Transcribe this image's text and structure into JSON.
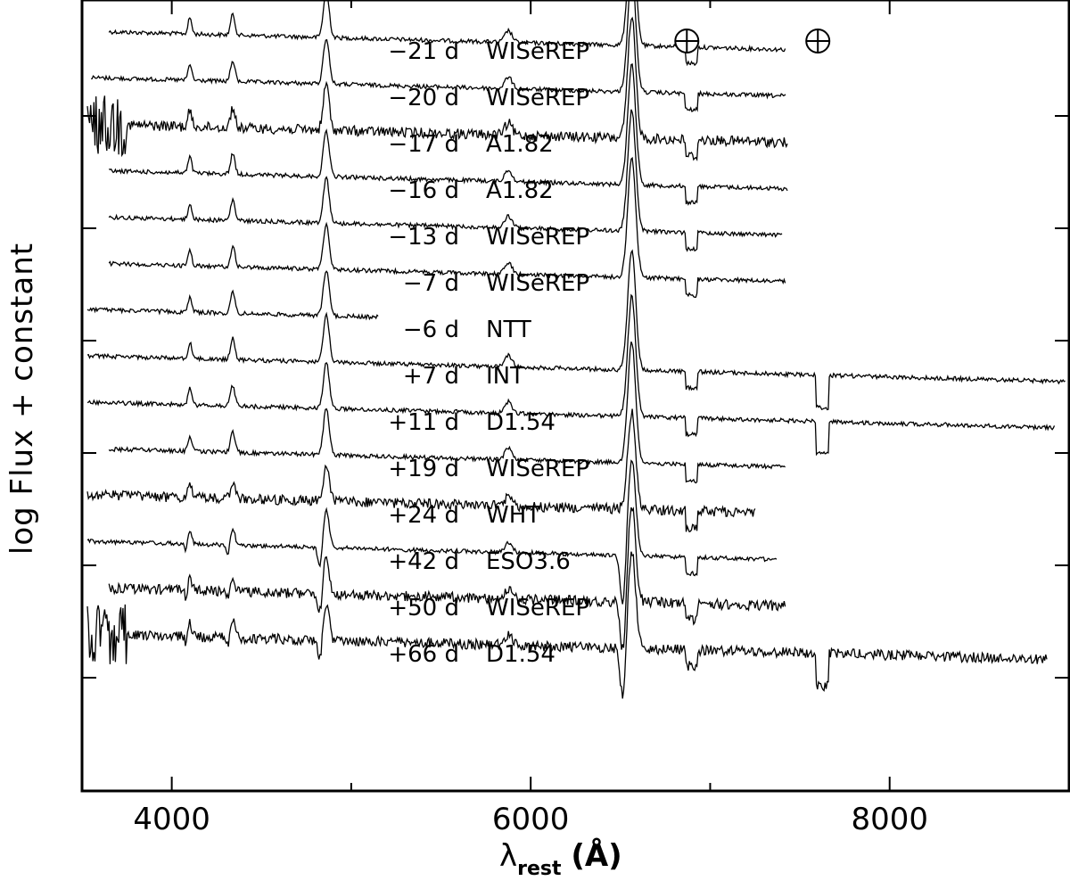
{
  "chart_data": {
    "type": "line",
    "title": "",
    "xlabel_symbol": "λ",
    "xlabel_sub": "rest",
    "xlabel_unit": "(Å)",
    "ylabel": "log Flux + constant",
    "xlim": [
      3500,
      9000
    ],
    "x_ticks": [
      4000,
      6000,
      8000
    ],
    "x_tick_labels": [
      "4000",
      "6000",
      "8000"
    ],
    "telluric_symbols": [
      {
        "x": 6870,
        "glyph": "⊕"
      },
      {
        "x": 7600,
        "glyph": "⊕"
      }
    ],
    "grid": false,
    "legend": "none",
    "line_color": "#000000",
    "features": [
      {
        "x": 4101,
        "width": 10,
        "strength": 0.35
      },
      {
        "x": 4340,
        "width": 12,
        "strength": 0.45
      },
      {
        "x": 4861,
        "width": 16,
        "strength": 1.0
      },
      {
        "x": 5876,
        "width": 20,
        "strength": 0.25
      },
      {
        "x": 6563,
        "width": 22,
        "strength": 2.6
      }
    ],
    "series": [
      {
        "epoch": "−21 d",
        "source": "WISeREP",
        "x_range": [
          3650,
          7420
        ],
        "offset": 13.0
      },
      {
        "epoch": "−20 d",
        "source": "WISeREP",
        "x_range": [
          3550,
          7420
        ],
        "offset": 12.0
      },
      {
        "epoch": "−17 d",
        "source": "A1.82",
        "x_range": [
          3530,
          7430
        ],
        "offset": 11.0
      },
      {
        "epoch": "−16 d",
        "source": "A1.82",
        "x_range": [
          3650,
          7430
        ],
        "offset": 10.0
      },
      {
        "epoch": "−13 d",
        "source": "WISeREP",
        "x_range": [
          3650,
          7400
        ],
        "offset": 9.0
      },
      {
        "epoch": "−7 d",
        "source": "WISeREP",
        "x_range": [
          3650,
          7420
        ],
        "offset": 8.0
      },
      {
        "epoch": "−6 d",
        "source": "NTT",
        "x_range": [
          3530,
          5150
        ],
        "offset": 7.0
      },
      {
        "epoch": "+7 d",
        "source": "INT",
        "x_range": [
          3530,
          8980
        ],
        "offset": 6.0
      },
      {
        "epoch": "+11 d",
        "source": "D1.54",
        "x_range": [
          3530,
          8920
        ],
        "offset": 5.0
      },
      {
        "epoch": "+19 d",
        "source": "WISeREP",
        "x_range": [
          3650,
          7420
        ],
        "offset": 4.0
      },
      {
        "epoch": "+24 d",
        "source": "WHT",
        "x_range": [
          3530,
          7250
        ],
        "offset": 3.0
      },
      {
        "epoch": "+42 d",
        "source": "ESO3.6",
        "x_range": [
          3530,
          7370
        ],
        "offset": 2.0
      },
      {
        "epoch": "+50 d",
        "source": "WISeREP",
        "x_range": [
          3650,
          7420
        ],
        "offset": 1.0
      },
      {
        "epoch": "+66 d",
        "source": "D1.54",
        "x_range": [
          3530,
          8880
        ],
        "offset": 0.0
      }
    ]
  }
}
